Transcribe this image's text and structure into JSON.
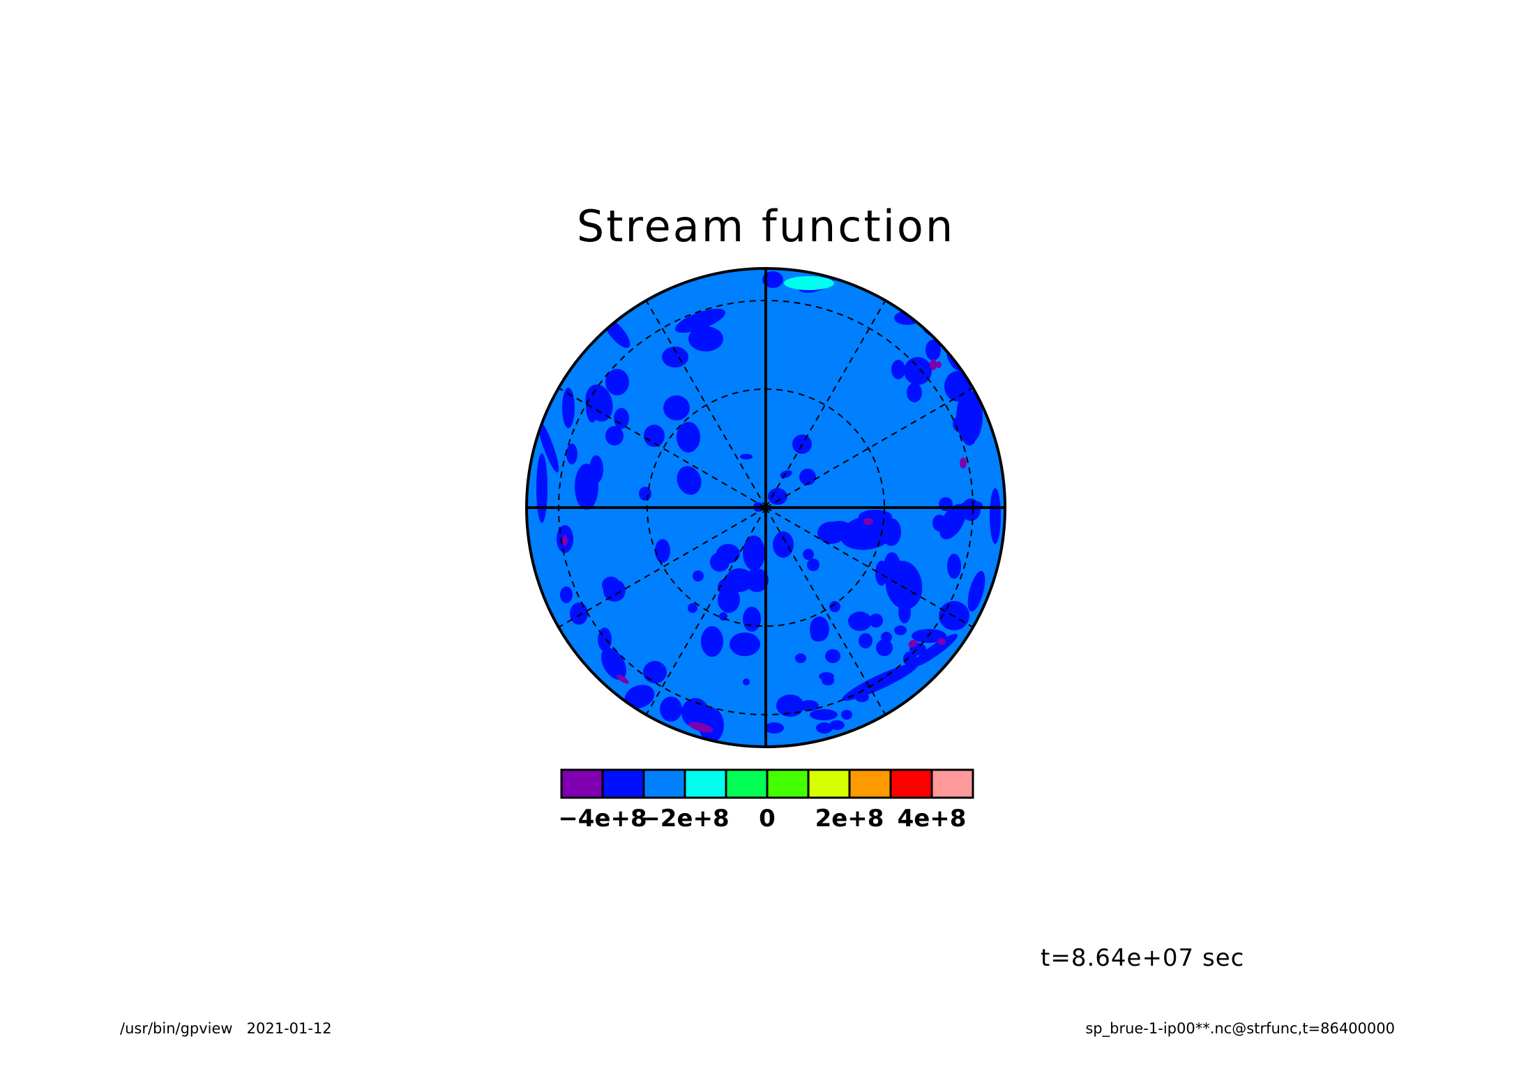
{
  "chart_data": {
    "type": "heatmap",
    "projection": "orthographic, polar view",
    "title": "Stream function",
    "background_level": "-2e+8 to 0",
    "colorbar": {
      "boundaries": [
        -500000000.0,
        -400000000.0,
        -300000000.0,
        -200000000.0,
        -100000000.0,
        0,
        100000000.0,
        200000000.0,
        300000000.0,
        400000000.0,
        500000000.0
      ],
      "colors": [
        "#7f00b0",
        "#0010ff",
        "#0080ff",
        "#00ffee",
        "#00ff55",
        "#44ff00",
        "#d6ff00",
        "#ff9900",
        "#ff0000",
        "#ff9a9a"
      ],
      "tick_labels": [
        "−4e+8",
        "−2e+8",
        "0",
        "2e+8",
        "4e+8"
      ],
      "tick_values": [
        -400000000.0,
        -200000000.0,
        0,
        200000000.0,
        400000000.0
      ]
    },
    "grid": {
      "latitude_circles": 2,
      "meridians_dashed": 12,
      "solid_axes": true
    },
    "time_label": "t=8.64e+07 sec"
  },
  "footer": {
    "left": "/usr/bin/gpview   2021-01-12",
    "right": "sp_brue-1-ip00**.nc@strfunc,t=86400000"
  }
}
